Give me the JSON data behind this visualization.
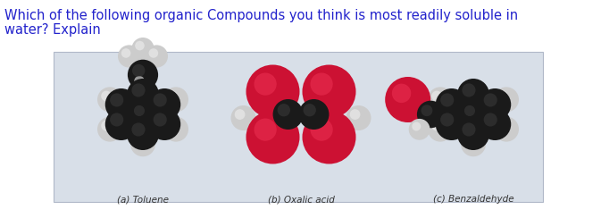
{
  "title_line1": "Which of the following organic Compounds you think is most readily soluble in",
  "title_line2": "water? Explain",
  "title_color": "#2222cc",
  "title_fontsize": 10.5,
  "bg_color": "#ffffff",
  "panel_bg": "#d8dfe8",
  "labels": [
    "(a) Toluene",
    "(b) Oxalic acid",
    "(c) Benzaldehyde"
  ],
  "label_fontsize": 7.5,
  "label_color": "#333333",
  "black_color": "#1a1a1a",
  "white_color": "#cccccc",
  "red_color": "#cc1133"
}
